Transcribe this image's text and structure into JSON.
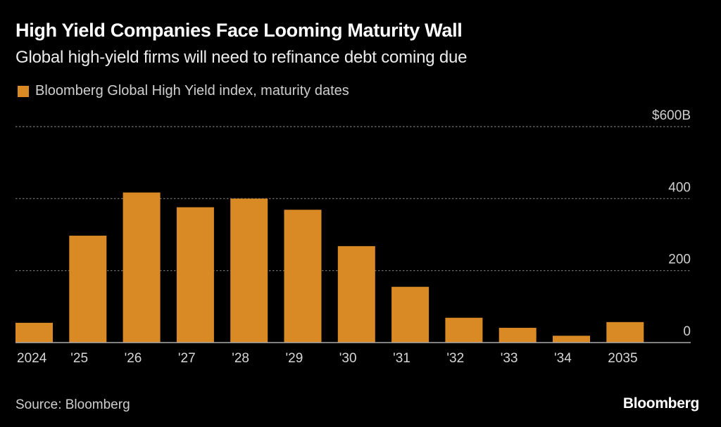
{
  "header": {
    "title": "High Yield Companies Face Looming Maturity Wall",
    "subtitle": "Global high-yield firms will need to refinance debt coming due"
  },
  "footer": {
    "source": "Source: Bloomberg",
    "brand": "Bloomberg"
  },
  "chart_data": {
    "type": "bar",
    "title": "High Yield Companies Face Looming Maturity Wall",
    "subtitle": "Global high-yield firms will need to refinance debt coming due",
    "xlabel": "",
    "ylabel": "",
    "categories": [
      "2024",
      "'25",
      "'26",
      "'27",
      "'28",
      "'29",
      "'30",
      "'31",
      "'32",
      "'33",
      "'34",
      "2035"
    ],
    "series": [
      {
        "name": "Bloomberg Global High Yield index, maturity dates",
        "color": "#D98A25",
        "values": [
          55,
          297,
          417,
          376,
          400,
          369,
          268,
          155,
          69,
          41,
          19,
          57
        ]
      }
    ],
    "ylim": [
      0,
      600
    ],
    "yticks": [
      0,
      200,
      400,
      600
    ],
    "ytick_labels": [
      "0",
      "200",
      "400",
      "$600B"
    ],
    "grid": true,
    "legend": "top-left",
    "y_axis_side": "right"
  }
}
